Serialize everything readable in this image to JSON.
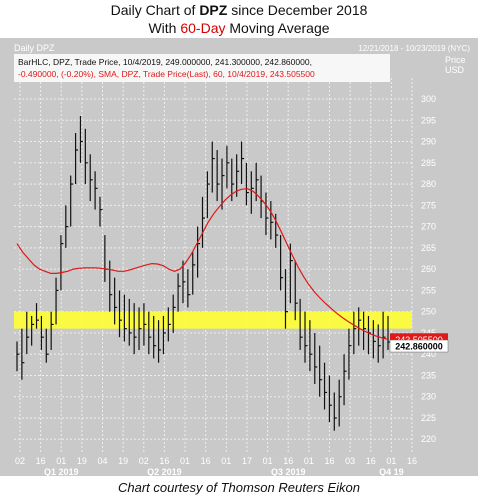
{
  "heading": {
    "line1_prefix": "Daily Chart of ",
    "line1_ticker": "DPZ",
    "line1_suffix": " since December 2018",
    "line2_prefix": "With ",
    "line2_accent": "60-Day",
    "line2_suffix": " Moving Average"
  },
  "footer": "Chart courtesy of Thomson Reuters Eikon",
  "colors": {
    "background": "#c9c9c9",
    "price_bars": "#111111",
    "sma_line": "#e01818",
    "highlight_band": "#ffff33",
    "sma_tag": "#e01818",
    "price_tag": "#ffffff"
  },
  "chart_data": {
    "type": "line",
    "panel_title": "Daily DPZ",
    "date_range": "12/21/2018 - 10/23/2019 (NYC)",
    "y_axis_title": "Price\nUSD",
    "legend": [
      "BarHLC, DPZ, Trade Price, 10/4/2019, 249.000000, 241.300000, 242.860000,",
      "-0.490000, (-0.20%),",
      "SMA, DPZ, Trade Price(Last), 60, 10/4/2019, 243.505500"
    ],
    "ylim": [
      217,
      304
    ],
    "y_ticks": [
      220,
      225,
      230,
      235,
      240,
      245,
      250,
      255,
      260,
      265,
      270,
      275,
      280,
      285,
      290,
      295,
      300
    ],
    "x_ticks": [
      "02",
      "16",
      "01",
      "19",
      "04",
      "19",
      "02",
      "16",
      "01",
      "16",
      "01",
      "17",
      "01",
      "16",
      "01",
      "16",
      "03",
      "16",
      "01",
      "16"
    ],
    "x_major_labels": [
      "Q1 2019",
      "Q2 2019",
      "Q3 2019",
      "Q4 19"
    ],
    "highlight_band": [
      246,
      250
    ],
    "price_last": "242.860000",
    "sma_last": "243.505500",
    "series": [
      {
        "kind": "hlc_bars",
        "values": [
          [
            243,
            236,
            240
          ],
          [
            246,
            234,
            238
          ],
          [
            250,
            240,
            244
          ],
          [
            249,
            242,
            247
          ],
          [
            252,
            246,
            248
          ],
          [
            249,
            241,
            244
          ],
          [
            246,
            238,
            240
          ],
          [
            250,
            241,
            247
          ],
          [
            258,
            247,
            255
          ],
          [
            268,
            255,
            266
          ],
          [
            275,
            265,
            270
          ],
          [
            282,
            270,
            280
          ],
          [
            292,
            280,
            288
          ],
          [
            296,
            285,
            290
          ],
          [
            293,
            280,
            285
          ],
          [
            287,
            276,
            281
          ],
          [
            283,
            274,
            279
          ],
          [
            277,
            270,
            274
          ],
          [
            268,
            257,
            260
          ],
          [
            262,
            250,
            254
          ],
          [
            258,
            247,
            251
          ],
          [
            255,
            244,
            248
          ],
          [
            254,
            243,
            246
          ],
          [
            253,
            242,
            245
          ],
          [
            252,
            240,
            244
          ],
          [
            251,
            241,
            246
          ],
          [
            252,
            242,
            247
          ],
          [
            250,
            240,
            244
          ],
          [
            249,
            239,
            242
          ],
          [
            248,
            238,
            241
          ],
          [
            249,
            240,
            245
          ],
          [
            251,
            243,
            247
          ],
          [
            254,
            245,
            251
          ],
          [
            259,
            250,
            256
          ],
          [
            262,
            252,
            257
          ],
          [
            260,
            251,
            254
          ],
          [
            264,
            254,
            261
          ],
          [
            270,
            258,
            266
          ],
          [
            277,
            265,
            272
          ],
          [
            283,
            272,
            280
          ],
          [
            290,
            278,
            286
          ],
          [
            288,
            276,
            280
          ],
          [
            286,
            274,
            282
          ],
          [
            289,
            279,
            285
          ],
          [
            286,
            276,
            280
          ],
          [
            287,
            277,
            283
          ],
          [
            290,
            280,
            286
          ],
          [
            285,
            275,
            278
          ],
          [
            283,
            273,
            279
          ],
          [
            285,
            276,
            281
          ],
          [
            282,
            272,
            276
          ],
          [
            278,
            268,
            272
          ],
          [
            276,
            267,
            271
          ],
          [
            273,
            265,
            268
          ],
          [
            268,
            255,
            258
          ],
          [
            260,
            246,
            250
          ],
          [
            266,
            252,
            262
          ],
          [
            262,
            248,
            252
          ],
          [
            253,
            241,
            244
          ],
          [
            250,
            238,
            242
          ],
          [
            248,
            236,
            240
          ],
          [
            245,
            233,
            237
          ],
          [
            242,
            230,
            234
          ],
          [
            238,
            227,
            231
          ],
          [
            235,
            224,
            228
          ],
          [
            231,
            222,
            225
          ],
          [
            234,
            223,
            230
          ],
          [
            240,
            228,
            236
          ],
          [
            246,
            234,
            242
          ],
          [
            250,
            240,
            246
          ],
          [
            251,
            242,
            248
          ],
          [
            250,
            241,
            246
          ],
          [
            249,
            240,
            245
          ],
          [
            248,
            239,
            243
          ],
          [
            247,
            238,
            242
          ],
          [
            250,
            239,
            244
          ],
          [
            249,
            241,
            242.86
          ]
        ]
      },
      {
        "kind": "sma",
        "name": "SMA 60",
        "values": [
          266,
          264,
          262.5,
          261,
          260,
          259.5,
          259,
          259,
          259.2,
          259.5,
          260,
          260.2,
          260.3,
          260.3,
          260.3,
          260.2,
          260,
          259.8,
          259.5,
          259.5,
          259.8,
          260.2,
          260.6,
          261,
          261.3,
          261.2,
          260.8,
          260,
          259.5,
          260,
          261.5,
          263.5,
          266,
          268.5,
          271,
          273,
          274.7,
          276.2,
          277.4,
          278.3,
          278.8,
          278.9,
          278.3,
          277.1,
          275.6,
          273.8,
          271.5,
          268.8,
          266,
          263.2,
          260.5,
          258.2,
          256.2,
          254.5,
          253.1,
          251.8,
          250.6,
          249.5,
          248.5,
          247.6,
          246.8,
          246,
          245.3,
          244.7,
          244.2,
          243.8,
          243.5
        ]
      }
    ]
  }
}
